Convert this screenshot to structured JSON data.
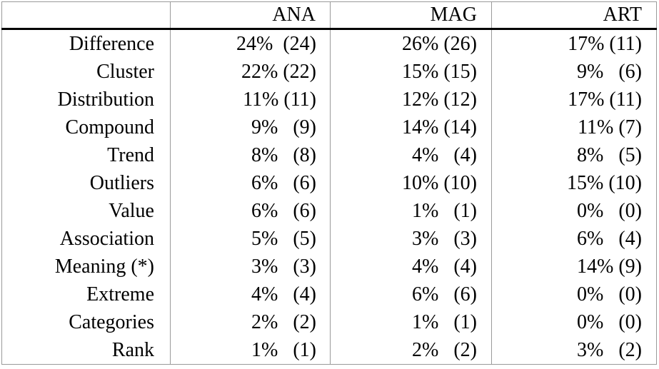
{
  "table": {
    "headers": [
      "",
      "ANA",
      "MAG",
      "ART"
    ],
    "rows": [
      {
        "label": "Difference",
        "ana": "24%  (24)",
        "mag": "26% (26)",
        "art": "17% (11)"
      },
      {
        "label": "Cluster",
        "ana": "22% (22)",
        "mag": "15% (15)",
        "art": "9%   (6)"
      },
      {
        "label": "Distribution",
        "ana": "11% (11)",
        "mag": "12% (12)",
        "art": "17% (11)"
      },
      {
        "label": "Compound",
        "ana": "9%   (9)",
        "mag": "14% (14)",
        "art": "11% (7)"
      },
      {
        "label": "Trend",
        "ana": "8%   (8)",
        "mag": "4%   (4)",
        "art": "8%   (5)"
      },
      {
        "label": "Outliers",
        "ana": "6%   (6)",
        "mag": "10% (10)",
        "art": "15% (10)"
      },
      {
        "label": "Value",
        "ana": "6%   (6)",
        "mag": "1%   (1)",
        "art": "0%   (0)"
      },
      {
        "label": "Association",
        "ana": "5%   (5)",
        "mag": "3%   (3)",
        "art": "6%   (4)"
      },
      {
        "label": "Meaning (*)",
        "ana": "3%   (3)",
        "mag": "4%   (4)",
        "art": "14% (9)"
      },
      {
        "label": "Extreme",
        "ana": "4%   (4)",
        "mag": "6%   (6)",
        "art": "0%   (0)"
      },
      {
        "label": "Categories",
        "ana": "2%   (2)",
        "mag": "1%   (1)",
        "art": "0%   (0)"
      },
      {
        "label": "Rank",
        "ana": "1%   (1)",
        "mag": "2%   (2)",
        "art": "3%   (2)"
      }
    ]
  }
}
